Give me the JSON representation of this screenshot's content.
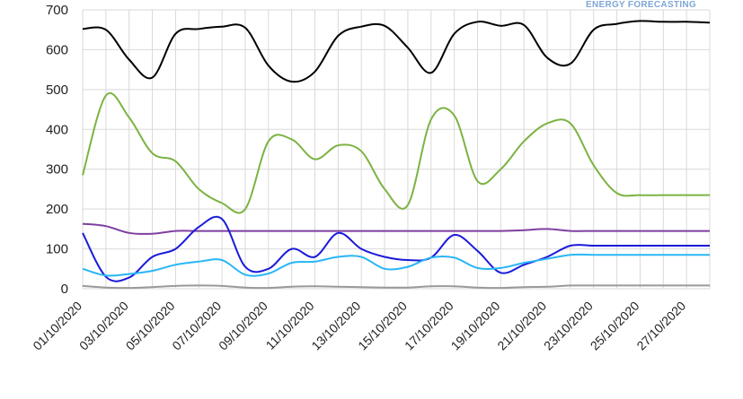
{
  "watermark": "ENERGY FORECASTING",
  "chart_data": {
    "type": "line",
    "ylim": [
      0,
      700
    ],
    "y_ticks": [
      0,
      100,
      200,
      300,
      400,
      500,
      600,
      700
    ],
    "grid": true,
    "x_tick_labels": [
      "01/10/2020",
      "03/10/2020",
      "05/10/2020",
      "07/10/2020",
      "09/10/2020",
      "11/10/2020",
      "13/10/2020",
      "15/10/2020",
      "17/10/2020",
      "19/10/2020",
      "21/10/2020",
      "23/10/2020",
      "25/10/2020",
      "27/10/2020"
    ],
    "x": [
      "01/10/2020",
      "02/10/2020",
      "03/10/2020",
      "04/10/2020",
      "05/10/2020",
      "06/10/2020",
      "07/10/2020",
      "08/10/2020",
      "09/10/2020",
      "10/10/2020",
      "11/10/2020",
      "12/10/2020",
      "13/10/2020",
      "14/10/2020",
      "15/10/2020",
      "16/10/2020",
      "17/10/2020",
      "18/10/2020",
      "19/10/2020",
      "20/10/2020",
      "21/10/2020",
      "22/10/2020",
      "23/10/2020",
      "24/10/2020",
      "25/10/2020",
      "26/10/2020",
      "27/10/2020",
      "28/10/2020"
    ],
    "series": [
      {
        "color": "#000000",
        "values": [
          652,
          650,
          575,
          530,
          640,
          652,
          658,
          655,
          560,
          520,
          545,
          635,
          658,
          660,
          605,
          542,
          640,
          670,
          660,
          662,
          580,
          565,
          650,
          665,
          672,
          670,
          670,
          668
        ]
      },
      {
        "color": "#7cb342",
        "values": [
          285,
          485,
          430,
          340,
          320,
          250,
          215,
          200,
          370,
          375,
          325,
          360,
          345,
          250,
          210,
          425,
          435,
          270,
          300,
          370,
          415,
          415,
          310,
          240,
          235,
          235,
          235,
          235
        ]
      },
      {
        "color": "#7e3fa0",
        "values": [
          163,
          157,
          140,
          138,
          145,
          145,
          145,
          145,
          145,
          145,
          145,
          145,
          145,
          145,
          145,
          145,
          145,
          145,
          145,
          147,
          150,
          145,
          145,
          145,
          145,
          145,
          145,
          145
        ]
      },
      {
        "color": "#1a1adb",
        "values": [
          140,
          30,
          28,
          80,
          100,
          155,
          175,
          55,
          50,
          100,
          80,
          140,
          100,
          80,
          72,
          78,
          135,
          95,
          40,
          60,
          80,
          108,
          108,
          108,
          108,
          108,
          108,
          108
        ]
      },
      {
        "color": "#29b6f6",
        "values": [
          50,
          33,
          37,
          45,
          60,
          68,
          72,
          35,
          38,
          65,
          68,
          80,
          80,
          50,
          55,
          78,
          78,
          52,
          52,
          65,
          75,
          85,
          85,
          85,
          85,
          85,
          85,
          85
        ]
      },
      {
        "color": "#999999",
        "values": [
          7,
          3,
          2,
          4,
          7,
          8,
          7,
          3,
          2,
          5,
          6,
          5,
          4,
          3,
          3,
          6,
          6,
          3,
          2,
          4,
          5,
          8,
          8,
          8,
          8,
          8,
          8,
          8
        ]
      }
    ]
  }
}
